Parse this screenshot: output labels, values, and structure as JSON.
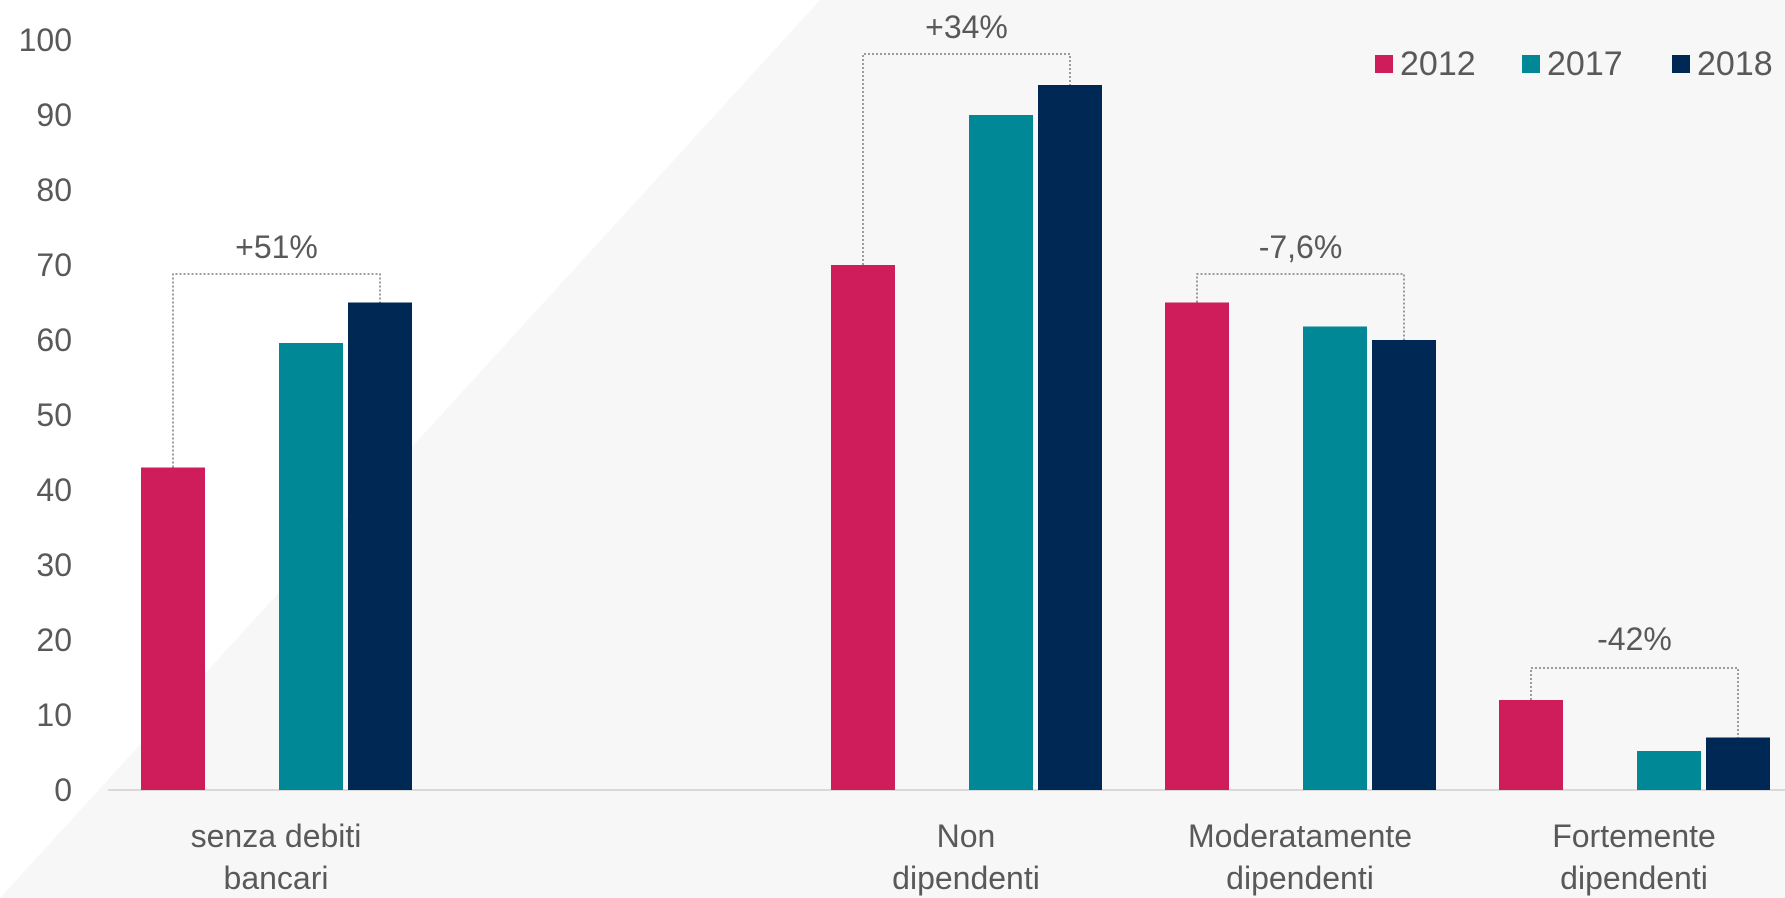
{
  "chart_data": {
    "type": "bar",
    "categories": [
      [
        "senza debiti",
        "bancari"
      ],
      [
        "Non",
        "dipendenti"
      ],
      [
        "Moderatamente",
        "dipendenti"
      ],
      [
        "Fortemente",
        "dipendenti"
      ]
    ],
    "series": [
      {
        "name": "2012",
        "color": "#cf1c5a",
        "values": [
          43,
          70,
          65,
          12
        ]
      },
      {
        "name": "2017",
        "color": "#008896",
        "values": [
          59.6,
          90,
          61.8,
          5.2
        ]
      },
      {
        "name": "2018",
        "color": "#002855",
        "values": [
          65,
          94,
          60,
          7
        ]
      }
    ],
    "annotations": [
      {
        "category": 0,
        "label": "+51%"
      },
      {
        "category": 1,
        "label": "+34%"
      },
      {
        "category": 2,
        "label": "-7,6%"
      },
      {
        "category": 3,
        "label": "-42%"
      }
    ],
    "yticks": [
      0,
      10,
      20,
      30,
      40,
      50,
      60,
      70,
      80,
      90,
      100
    ],
    "ylim": [
      0,
      100
    ],
    "grid": false,
    "legend_position": "top-right",
    "background_color": "#f7f7f7"
  }
}
